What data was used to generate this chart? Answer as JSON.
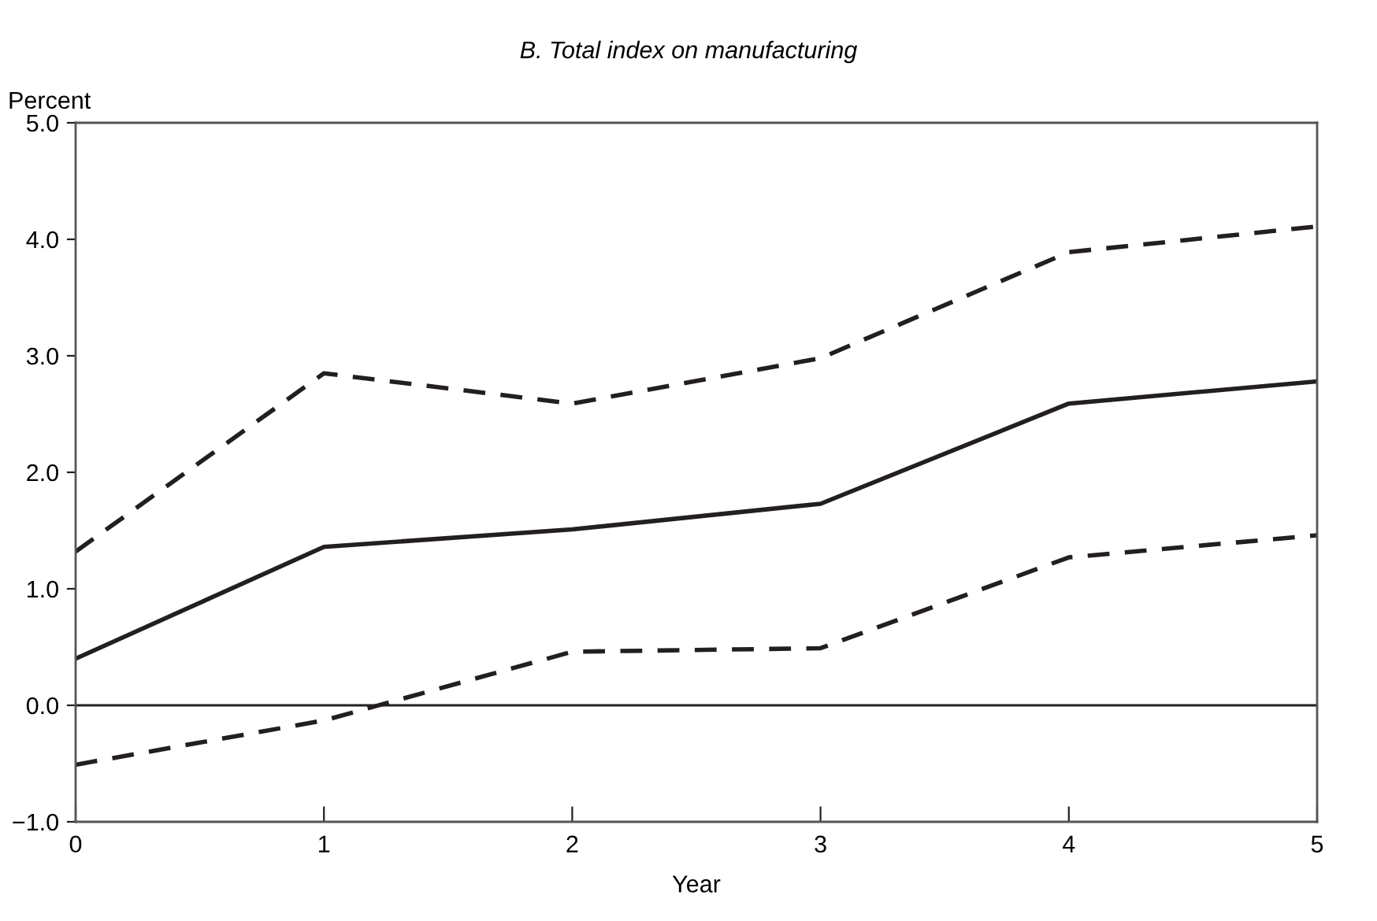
{
  "chart_data": {
    "type": "line",
    "title": "B. Total index on manufacturing",
    "xlabel": "Year",
    "ylabel": "Percent",
    "x": [
      0,
      1,
      2,
      3,
      4,
      5
    ],
    "series": [
      {
        "color": "#231f20",
        "line_style": "solid",
        "values": [
          0.4,
          1.36,
          1.51,
          1.73,
          2.59,
          2.78
        ]
      },
      {
        "color": "#231f20",
        "line_style": "dashed",
        "values": [
          1.32,
          2.85,
          2.59,
          2.98,
          3.89,
          4.11
        ]
      },
      {
        "color": "#231f20",
        "line_style": "dashed",
        "values": [
          -0.51,
          -0.13,
          0.46,
          0.49,
          1.27,
          1.46
        ]
      }
    ],
    "xlim": [
      0,
      5
    ],
    "xticks": [
      0,
      1,
      2,
      3,
      4,
      5
    ],
    "ylim": [
      -1.0,
      5.0
    ],
    "yticks": [
      {
        "value": -1.0,
        "label": "−1.0"
      },
      {
        "value": 0.0,
        "label": "0.0"
      },
      {
        "value": 1.0,
        "label": "1.0"
      },
      {
        "value": 2.0,
        "label": "2.0"
      },
      {
        "value": 3.0,
        "label": "3.0"
      },
      {
        "value": 4.0,
        "label": "4.0"
      },
      {
        "value": 5.0,
        "label": "5.0"
      }
    ],
    "ref_lines": [
      {
        "axis": "y",
        "value": 0.0,
        "color": "#231f20"
      }
    ],
    "marker": "none"
  }
}
